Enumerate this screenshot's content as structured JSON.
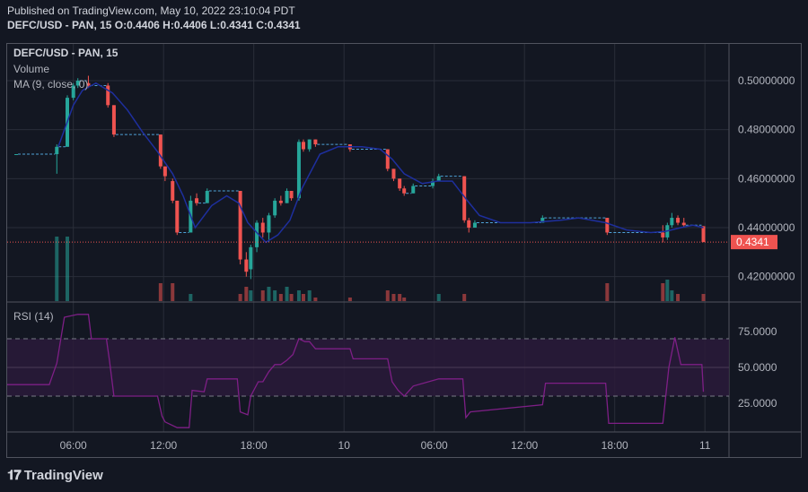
{
  "header": {
    "published": "Published on TradingView.com, May 10, 2022 23:10:04 PDT",
    "ohlc": "DEFC/USD - PAN, 15 O:0.4406 H:0.4406 L:0.4341 C:0.4341"
  },
  "legend": {
    "symbol": "DEFC/USD - PAN, 15",
    "volume": "Volume",
    "ma": "MA (9, close, 0)",
    "rsi": "RSI (14)"
  },
  "footer": {
    "brand": "TradingView"
  },
  "colors": {
    "up": "#26a69a",
    "down": "#ef5350",
    "ma": "#1e2f9e",
    "rsi": "#7e1f86",
    "rsi_band": "#2a1a3a",
    "grid": "#2a2e39",
    "last_price_bg": "#ef5350"
  },
  "chart_data": [
    {
      "type": "candlestick",
      "title": "DEFC/USD - PAN, 15",
      "ylim": [
        0.41,
        0.515
      ],
      "y_ticks": [
        0.42,
        0.44,
        0.46,
        0.48,
        0.5
      ],
      "y_tick_labels": [
        "0.42000000",
        "0.44000000",
        "0.46000000",
        "0.48000000",
        "0.50000000"
      ],
      "x_ticks": [
        {
          "t": 6,
          "label": "06:00"
        },
        {
          "t": 12,
          "label": "12:00"
        },
        {
          "t": 18,
          "label": "18:00"
        },
        {
          "t": 24,
          "label": "10"
        },
        {
          "t": 30,
          "label": "06:00"
        },
        {
          "t": 36,
          "label": "12:00"
        },
        {
          "t": 42,
          "label": "18:00"
        },
        {
          "t": 48,
          "label": "11"
        }
      ],
      "x_range": [
        1.6,
        49.6
      ],
      "last_price": 0.4341,
      "last_price_label": "0.4341",
      "candles": [
        {
          "t": 2.2,
          "o": 0.47,
          "h": 0.47,
          "l": 0.47,
          "c": 0.47
        },
        {
          "t": 4.9,
          "o": 0.47,
          "h": 0.474,
          "l": 0.462,
          "c": 0.473
        },
        {
          "t": 5.6,
          "o": 0.473,
          "h": 0.494,
          "l": 0.473,
          "c": 0.493
        },
        {
          "t": 6.0,
          "o": 0.493,
          "h": 0.499,
          "l": 0.492,
          "c": 0.498
        },
        {
          "t": 6.3,
          "o": 0.498,
          "h": 0.501,
          "l": 0.497,
          "c": 0.5
        },
        {
          "t": 7.0,
          "o": 0.499,
          "h": 0.502,
          "l": 0.497,
          "c": 0.498
        },
        {
          "t": 8.3,
          "o": 0.498,
          "h": 0.499,
          "l": 0.489,
          "c": 0.49
        },
        {
          "t": 8.7,
          "o": 0.49,
          "h": 0.49,
          "l": 0.477,
          "c": 0.478
        },
        {
          "t": 11.8,
          "o": 0.478,
          "h": 0.478,
          "l": 0.464,
          "c": 0.465
        },
        {
          "t": 12.1,
          "o": 0.465,
          "h": 0.465,
          "l": 0.459,
          "c": 0.461
        },
        {
          "t": 12.6,
          "o": 0.459,
          "h": 0.46,
          "l": 0.45,
          "c": 0.451
        },
        {
          "t": 12.9,
          "o": 0.451,
          "h": 0.451,
          "l": 0.437,
          "c": 0.438
        },
        {
          "t": 13.8,
          "o": 0.438,
          "h": 0.453,
          "l": 0.438,
          "c": 0.451
        },
        {
          "t": 14.2,
          "o": 0.452,
          "h": 0.454,
          "l": 0.449,
          "c": 0.45
        },
        {
          "t": 14.9,
          "o": 0.45,
          "h": 0.456,
          "l": 0.45,
          "c": 0.455
        },
        {
          "t": 17.1,
          "o": 0.455,
          "h": 0.455,
          "l": 0.425,
          "c": 0.427
        },
        {
          "t": 17.5,
          "o": 0.427,
          "h": 0.43,
          "l": 0.42,
          "c": 0.422
        },
        {
          "t": 17.8,
          "o": 0.423,
          "h": 0.433,
          "l": 0.419,
          "c": 0.432
        },
        {
          "t": 18.2,
          "o": 0.432,
          "h": 0.443,
          "l": 0.43,
          "c": 0.442
        },
        {
          "t": 18.6,
          "o": 0.442,
          "h": 0.444,
          "l": 0.436,
          "c": 0.438
        },
        {
          "t": 19.0,
          "o": 0.438,
          "h": 0.446,
          "l": 0.434,
          "c": 0.445
        },
        {
          "t": 19.4,
          "o": 0.445,
          "h": 0.452,
          "l": 0.444,
          "c": 0.451
        },
        {
          "t": 19.8,
          "o": 0.451,
          "h": 0.453,
          "l": 0.449,
          "c": 0.45
        },
        {
          "t": 20.2,
          "o": 0.45,
          "h": 0.456,
          "l": 0.45,
          "c": 0.455
        },
        {
          "t": 20.5,
          "o": 0.455,
          "h": 0.454,
          "l": 0.451,
          "c": 0.452
        },
        {
          "t": 21.0,
          "o": 0.452,
          "h": 0.476,
          "l": 0.451,
          "c": 0.475
        },
        {
          "t": 21.3,
          "o": 0.475,
          "h": 0.476,
          "l": 0.471,
          "c": 0.472
        },
        {
          "t": 21.7,
          "o": 0.472,
          "h": 0.476,
          "l": 0.471,
          "c": 0.476
        },
        {
          "t": 22.1,
          "o": 0.476,
          "h": 0.476,
          "l": 0.473,
          "c": 0.474
        },
        {
          "t": 24.4,
          "o": 0.474,
          "h": 0.474,
          "l": 0.471,
          "c": 0.472
        },
        {
          "t": 26.9,
          "o": 0.472,
          "h": 0.472,
          "l": 0.463,
          "c": 0.464
        },
        {
          "t": 27.3,
          "o": 0.464,
          "h": 0.464,
          "l": 0.459,
          "c": 0.46
        },
        {
          "t": 27.7,
          "o": 0.46,
          "h": 0.46,
          "l": 0.455,
          "c": 0.456
        },
        {
          "t": 28.0,
          "o": 0.456,
          "h": 0.457,
          "l": 0.453,
          "c": 0.454
        },
        {
          "t": 28.6,
          "o": 0.454,
          "h": 0.458,
          "l": 0.454,
          "c": 0.457
        },
        {
          "t": 29.9,
          "o": 0.457,
          "h": 0.46,
          "l": 0.456,
          "c": 0.459
        },
        {
          "t": 30.3,
          "o": 0.459,
          "h": 0.462,
          "l": 0.459,
          "c": 0.461
        },
        {
          "t": 32.0,
          "o": 0.461,
          "h": 0.461,
          "l": 0.442,
          "c": 0.443
        },
        {
          "t": 32.3,
          "o": 0.443,
          "h": 0.444,
          "l": 0.438,
          "c": 0.44
        },
        {
          "t": 32.7,
          "o": 0.44,
          "h": 0.443,
          "l": 0.44,
          "c": 0.442
        },
        {
          "t": 37.2,
          "o": 0.442,
          "h": 0.445,
          "l": 0.442,
          "c": 0.444
        },
        {
          "t": 41.5,
          "o": 0.444,
          "h": 0.444,
          "l": 0.437,
          "c": 0.438
        },
        {
          "t": 45.2,
          "o": 0.438,
          "h": 0.441,
          "l": 0.434,
          "c": 0.436
        },
        {
          "t": 45.5,
          "o": 0.436,
          "h": 0.442,
          "l": 0.435,
          "c": 0.441
        },
        {
          "t": 45.8,
          "o": 0.441,
          "h": 0.446,
          "l": 0.44,
          "c": 0.444
        },
        {
          "t": 46.2,
          "o": 0.444,
          "h": 0.445,
          "l": 0.441,
          "c": 0.442
        },
        {
          "t": 46.6,
          "o": 0.442,
          "h": 0.444,
          "l": 0.44,
          "c": 0.441
        },
        {
          "t": 47.9,
          "o": 0.4406,
          "h": 0.4406,
          "l": 0.4341,
          "c": 0.4341
        }
      ],
      "ma": {
        "name": "MA (9, close, 0)",
        "points": [
          [
            5.0,
            0.473
          ],
          [
            6.0,
            0.49
          ],
          [
            6.6,
            0.496
          ],
          [
            7.5,
            0.499
          ],
          [
            8.6,
            0.495
          ],
          [
            9.6,
            0.488
          ],
          [
            10.6,
            0.479
          ],
          [
            11.6,
            0.471
          ],
          [
            12.6,
            0.462
          ],
          [
            13.3,
            0.453
          ],
          [
            14.1,
            0.44
          ],
          [
            15.2,
            0.449
          ],
          [
            16.2,
            0.453
          ],
          [
            17.0,
            0.45
          ],
          [
            17.6,
            0.442
          ],
          [
            18.2,
            0.438
          ],
          [
            18.8,
            0.434
          ],
          [
            19.6,
            0.437
          ],
          [
            20.4,
            0.443
          ],
          [
            21.2,
            0.456
          ],
          [
            22.4,
            0.47
          ],
          [
            23.6,
            0.473
          ],
          [
            25.2,
            0.473
          ],
          [
            26.4,
            0.472
          ],
          [
            27.2,
            0.468
          ],
          [
            28.0,
            0.462
          ],
          [
            29.2,
            0.458
          ],
          [
            30.2,
            0.459
          ],
          [
            31.2,
            0.459
          ],
          [
            32.2,
            0.451
          ],
          [
            33.0,
            0.445
          ],
          [
            34.4,
            0.442
          ],
          [
            36.4,
            0.442
          ],
          [
            38.4,
            0.443
          ],
          [
            39.6,
            0.444
          ],
          [
            41.4,
            0.442
          ],
          [
            42.8,
            0.439
          ],
          [
            44.4,
            0.438
          ],
          [
            45.4,
            0.4385
          ],
          [
            46.4,
            0.44
          ],
          [
            47.2,
            0.441
          ],
          [
            47.9,
            0.44
          ]
        ]
      },
      "volume": [
        {
          "t": 4.9,
          "v": 18,
          "dir": "up"
        },
        {
          "t": 5.6,
          "v": 18,
          "dir": "up"
        },
        {
          "t": 11.8,
          "v": 5,
          "dir": "down"
        },
        {
          "t": 12.6,
          "v": 5,
          "dir": "down"
        },
        {
          "t": 13.8,
          "v": 2,
          "dir": "up"
        },
        {
          "t": 17.1,
          "v": 2,
          "dir": "down"
        },
        {
          "t": 17.5,
          "v": 4,
          "dir": "down"
        },
        {
          "t": 17.8,
          "v": 3,
          "dir": "up"
        },
        {
          "t": 18.6,
          "v": 3,
          "dir": "down"
        },
        {
          "t": 19.0,
          "v": 4,
          "dir": "up"
        },
        {
          "t": 19.4,
          "v": 3,
          "dir": "up"
        },
        {
          "t": 19.8,
          "v": 2,
          "dir": "down"
        },
        {
          "t": 20.2,
          "v": 4,
          "dir": "up"
        },
        {
          "t": 20.5,
          "v": 2,
          "dir": "down"
        },
        {
          "t": 21.0,
          "v": 3,
          "dir": "up"
        },
        {
          "t": 21.3,
          "v": 2,
          "dir": "down"
        },
        {
          "t": 21.7,
          "v": 3,
          "dir": "up"
        },
        {
          "t": 22.1,
          "v": 1,
          "dir": "down"
        },
        {
          "t": 24.4,
          "v": 1,
          "dir": "down"
        },
        {
          "t": 26.9,
          "v": 3,
          "dir": "down"
        },
        {
          "t": 27.3,
          "v": 2,
          "dir": "down"
        },
        {
          "t": 27.7,
          "v": 2,
          "dir": "down"
        },
        {
          "t": 28.0,
          "v": 1,
          "dir": "down"
        },
        {
          "t": 30.3,
          "v": 2,
          "dir": "up"
        },
        {
          "t": 32.0,
          "v": 2,
          "dir": "down"
        },
        {
          "t": 41.5,
          "v": 5,
          "dir": "down"
        },
        {
          "t": 45.2,
          "v": 5,
          "dir": "down"
        },
        {
          "t": 45.5,
          "v": 6,
          "dir": "up"
        },
        {
          "t": 45.8,
          "v": 3,
          "dir": "up"
        },
        {
          "t": 46.2,
          "v": 2,
          "dir": "down"
        },
        {
          "t": 47.9,
          "v": 2,
          "dir": "down"
        }
      ]
    },
    {
      "type": "line",
      "title": "RSI (14)",
      "ylim": [
        5,
        95
      ],
      "y_ticks": [
        25,
        50,
        75
      ],
      "y_tick_labels": [
        "25.0000",
        "50.0000",
        "75.0000"
      ],
      "band": [
        30,
        70
      ],
      "midline": 50,
      "series": [
        {
          "name": "RSI (14)",
          "points": [
            [
              1.6,
              38
            ],
            [
              4.4,
              38
            ],
            [
              4.9,
              53
            ],
            [
              5.4,
              85
            ],
            [
              6.3,
              87
            ],
            [
              7.0,
              87
            ],
            [
              7.2,
              70
            ],
            [
              8.2,
              70
            ],
            [
              8.4,
              55
            ],
            [
              8.7,
              30
            ],
            [
              11.6,
              30
            ],
            [
              11.9,
              16
            ],
            [
              12.1,
              12
            ],
            [
              12.9,
              8
            ],
            [
              13.7,
              8
            ],
            [
              13.9,
              34
            ],
            [
              14.7,
              33
            ],
            [
              14.9,
              42
            ],
            [
              16.9,
              42
            ],
            [
              17.1,
              19
            ],
            [
              17.6,
              17
            ],
            [
              17.8,
              30
            ],
            [
              18.3,
              40
            ],
            [
              18.6,
              40
            ],
            [
              19.0,
              47
            ],
            [
              19.4,
              52
            ],
            [
              19.8,
              52
            ],
            [
              20.2,
              55
            ],
            [
              20.6,
              59
            ],
            [
              21.0,
              70
            ],
            [
              21.4,
              68
            ],
            [
              21.7,
              68
            ],
            [
              22.1,
              63
            ],
            [
              24.4,
              63
            ],
            [
              24.6,
              56
            ],
            [
              26.9,
              56
            ],
            [
              27.2,
              40
            ],
            [
              27.6,
              34
            ],
            [
              28.0,
              30
            ],
            [
              28.6,
              37
            ],
            [
              30.3,
              42
            ],
            [
              31.9,
              42
            ],
            [
              32.1,
              15
            ],
            [
              32.4,
              19
            ],
            [
              37.2,
              24
            ],
            [
              37.4,
              39
            ],
            [
              41.4,
              39
            ],
            [
              41.6,
              11
            ],
            [
              45.2,
              11
            ],
            [
              45.6,
              50
            ],
            [
              46.0,
              71
            ],
            [
              46.4,
              52
            ],
            [
              47.8,
              52
            ],
            [
              47.9,
              33
            ]
          ]
        }
      ]
    }
  ]
}
